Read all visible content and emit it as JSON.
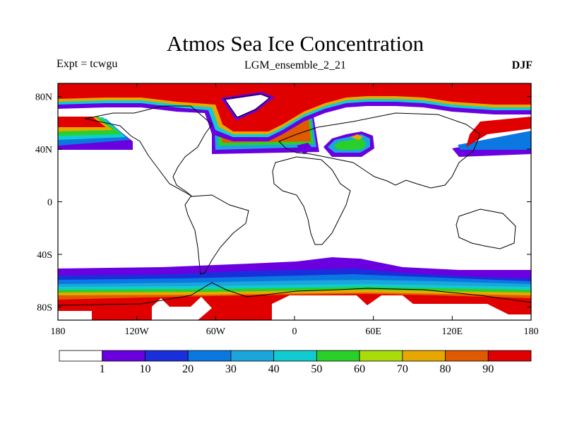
{
  "title": "Atmos Sea Ice Concentration",
  "experiment": "Expt = tcwgu",
  "run_name": "LGM_ensemble_2_21",
  "season": "DJF",
  "lat_ticks": [
    "80N",
    "40N",
    "0",
    "40S",
    "80S"
  ],
  "lat_values": [
    80,
    40,
    0,
    -40,
    -80
  ],
  "lon_ticks": [
    "180",
    "120W",
    "60W",
    "0",
    "60E",
    "120E",
    "180"
  ],
  "lon_values": [
    -180,
    -120,
    -60,
    0,
    60,
    120,
    180
  ],
  "colorbar": {
    "labels": [
      "1",
      "10",
      "20",
      "30",
      "40",
      "50",
      "60",
      "70",
      "80",
      "90"
    ],
    "colors": [
      "#ffffff",
      "#6a00e0",
      "#1a2fdc",
      "#0a78e0",
      "#1aa6dc",
      "#10ccd0",
      "#2ad02a",
      "#aadc0a",
      "#e6a800",
      "#e05a00",
      "#e00000"
    ]
  },
  "chart_data": {
    "type": "heatmap",
    "variable": "Sea Ice Concentration",
    "units": "%",
    "lat_range": [
      -90,
      90
    ],
    "lon_range": [
      -180,
      180
    ],
    "levels": [
      1,
      10,
      20,
      30,
      40,
      50,
      60,
      70,
      80,
      90
    ]
  }
}
